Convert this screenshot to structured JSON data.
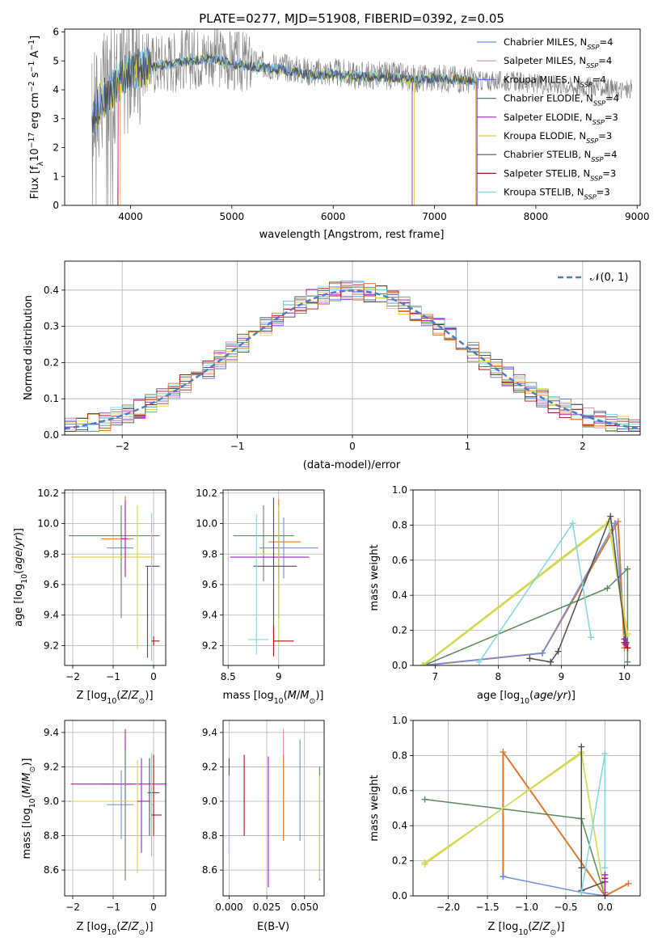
{
  "title": "PLATE=0277, MJD=51908, FIBERID=0392, z=0.05",
  "colors": {
    "Chabrier MILES": "#6b8ee0",
    "Salpeter MILES": "#e88aa8",
    "Kroupa MILES": "#6b6fd8",
    "Chabrier ELODIE": "#5c8a5c",
    "Salpeter ELODIE": "#a020c0",
    "Kroupa ELODIE": "#e0d040",
    "Chabrier STELIB": "#505050",
    "Salpeter STELIB": "#b01010",
    "Kroupa STELIB": "#7fd8e0",
    "data": "#808080",
    "orange": "#e07830",
    "lime": "#c8e060"
  },
  "chart_data": [
    {
      "id": "spectrum",
      "type": "line",
      "title": "PLATE=0277, MJD=51908, FIBERID=0392, z=0.05",
      "xlabel": "wavelength [Angstrom, rest frame]",
      "ylabel": "Flux [f_λ10^-17 erg cm^-2 s^-1 A^-1]",
      "xlim": [
        3350,
        9030
      ],
      "ylim": [
        0,
        6.1
      ],
      "xticks": [
        4000,
        5000,
        6000,
        7000,
        8000,
        9000
      ],
      "yticks": [
        0,
        1,
        2,
        3,
        4,
        5,
        6
      ],
      "legend_position": "right",
      "legend": [
        "Chabrier MILES, N_SSP=4",
        "Salpeter MILES, N_SSP=4",
        "Kroupa MILES, N_SSP=4",
        "Chabrier ELODIE, N_SSP=4",
        "Salpeter ELODIE, N_SSP=3",
        "Kroupa ELODIE, N_SSP=3",
        "Chabrier STELIB, N_SSP=4",
        "Salpeter STELIB, N_SSP=3",
        "Kroupa STELIB, N_SSP=3"
      ],
      "data_envelope": {
        "x": [
          3620,
          3700,
          3800,
          3900,
          4000,
          4200,
          4400,
          4600,
          4800,
          5000,
          5200,
          5500,
          5800,
          6000,
          6200,
          6500,
          6800,
          7000,
          7200,
          7400,
          7600,
          7800,
          8000,
          8200,
          8400,
          8600,
          8800,
          8950
        ],
        "y": [
          3.2,
          3.8,
          4.0,
          4.4,
          4.8,
          4.9,
          5.0,
          5.1,
          5.2,
          5.0,
          4.9,
          4.8,
          4.6,
          4.6,
          4.5,
          4.5,
          4.4,
          4.4,
          4.4,
          4.3,
          4.3,
          4.3,
          4.2,
          4.2,
          4.1,
          4.1,
          4.0,
          4.0
        ]
      },
      "model_fit": {
        "x": [
          3620,
          3700,
          3800,
          3900,
          4000,
          4200,
          4400,
          4600,
          4800,
          5000,
          5200,
          5500,
          5800,
          6000,
          6200,
          6500,
          6800,
          7000,
          7200,
          7400
        ],
        "y": [
          3.0,
          3.6,
          3.9,
          4.4,
          4.7,
          4.8,
          4.9,
          5.0,
          5.1,
          4.9,
          4.8,
          4.7,
          4.5,
          4.55,
          4.45,
          4.45,
          4.35,
          4.4,
          4.35,
          4.3
        ]
      }
    },
    {
      "id": "residuals",
      "type": "histogram",
      "xlabel": "(data-model)/error",
      "ylabel": "Normed distribution",
      "xlim": [
        -2.5,
        2.5
      ],
      "ylim": [
        0,
        0.48
      ],
      "xticks": [
        -2,
        -1,
        0,
        1,
        2
      ],
      "yticks": [
        0.0,
        0.1,
        0.2,
        0.3,
        0.4
      ],
      "grid": true,
      "legend_position": "top-right",
      "reference_curve": "𝒩(0, 1)",
      "bin_width": 0.1
    },
    {
      "id": "age_vs_Z",
      "type": "errorbar",
      "xlabel": "Z [log10(Z/Z⊙)]",
      "ylabel": "age  [log10(age/yr)]",
      "xlim": [
        -2.2,
        0.3
      ],
      "ylim": [
        9.07,
        10.22
      ],
      "xticks": [
        -2,
        -1,
        0
      ],
      "yticks": [
        9.2,
        9.4,
        9.6,
        9.8,
        10.0,
        10.2
      ],
      "grid": true,
      "points": [
        {
          "x": -0.7,
          "y": 9.9,
          "xerr": [
            0.6,
            0.2
          ],
          "yerr": [
            0.2,
            0.28
          ],
          "color": "#e07830"
        },
        {
          "x": -0.8,
          "y": 9.84,
          "xerr": [
            0.35,
            0.3
          ],
          "yerr": [
            0.2,
            0.2
          ],
          "color": "#6b8ee0"
        },
        {
          "x": -0.8,
          "y": 9.92,
          "xerr": [
            1.3,
            0.95
          ],
          "yerr": [
            0.54,
            0.2
          ],
          "color": "#5c8a5c"
        },
        {
          "x": -0.4,
          "y": 9.78,
          "xerr": [
            1.65,
            0.4
          ],
          "yerr": [
            0.22,
            0.34
          ],
          "color": "#e0d040"
        },
        {
          "x": -0.4,
          "y": 9.8,
          "xerr": [
            0.25,
            0.15
          ],
          "yerr": [
            0.62,
            0.32
          ],
          "color": "#c8e060"
        },
        {
          "x": -0.15,
          "y": 9.72,
          "xerr": [
            0.05,
            0.3
          ],
          "yerr": [
            0.6,
            0.0
          ],
          "color": "#505050"
        },
        {
          "x": -0.05,
          "y": 9.8,
          "xerr": [
            0.0,
            0.0
          ],
          "yerr": [
            0.7,
            0.27
          ],
          "color": "#7fd8e0"
        },
        {
          "x": 0.0,
          "y": 9.23,
          "xerr": [
            0.05,
            0.15
          ],
          "yerr": [
            0.03,
            0.03
          ],
          "color": "#b01010"
        },
        {
          "x": -0.7,
          "y": 9.9,
          "xerr": [
            0.1,
            0.05
          ],
          "yerr": [
            0.25,
            0.25
          ],
          "color": "#a020c0"
        }
      ]
    },
    {
      "id": "age_vs_mass",
      "type": "errorbar",
      "xlabel": "mass [log10(M/M⊙)]",
      "ylabel": "",
      "xlim": [
        8.45,
        9.45
      ],
      "ylim": [
        9.07,
        10.22
      ],
      "xticks": [
        8.5,
        9.0
      ],
      "yticks": [
        9.2,
        9.4,
        9.6,
        9.8,
        10.0,
        10.2
      ],
      "grid": true,
      "points": [
        {
          "x": 9.0,
          "y": 9.88,
          "xerr": [
            0.1,
            0.22
          ],
          "yerr": [
            0.2,
            0.28
          ],
          "color": "#e07830"
        },
        {
          "x": 9.05,
          "y": 9.84,
          "xerr": [
            0.24,
            0.34
          ],
          "yerr": [
            0.2,
            0.2
          ],
          "color": "#6b8ee0"
        },
        {
          "x": 8.85,
          "y": 9.92,
          "xerr": [
            0.3,
            0.3
          ],
          "yerr": [
            0.3,
            0.2
          ],
          "color": "#5c8a5c"
        },
        {
          "x": 9.0,
          "y": 9.78,
          "xerr": [
            0.48,
            0.3
          ],
          "yerr": [
            0.4,
            0.3
          ],
          "color": "#a020c0"
        },
        {
          "x": 9.0,
          "y": 9.8,
          "xerr": [
            0.25,
            0.0
          ],
          "yerr": [
            0.6,
            0.32
          ],
          "color": "#c8e060"
        },
        {
          "x": 8.95,
          "y": 9.72,
          "xerr": [
            0.2,
            0.23
          ],
          "yerr": [
            0.5,
            0.45
          ],
          "color": "#505050"
        },
        {
          "x": 8.78,
          "y": 9.84,
          "xerr": [
            0.0,
            0.0
          ],
          "yerr": [
            0.7,
            0.22
          ],
          "color": "#7fd8e0"
        },
        {
          "x": 8.95,
          "y": 9.23,
          "xerr": [
            0.0,
            0.2
          ],
          "yerr": [
            0.1,
            0.1
          ],
          "color": "#b01010"
        },
        {
          "x": 8.9,
          "y": 9.24,
          "xerr": [
            0.2,
            0.0
          ],
          "yerr": [
            0.0,
            0.0
          ],
          "color": "#7fd8e0"
        }
      ]
    },
    {
      "id": "weight_vs_age",
      "type": "line",
      "xlabel": "age  [log10(age/yr)]",
      "ylabel": "mass weight",
      "xlim": [
        6.65,
        10.25
      ],
      "ylim": [
        0,
        1.0
      ],
      "xticks": [
        7,
        8,
        9,
        10
      ],
      "yticks": [
        0.0,
        0.2,
        0.4,
        0.6,
        0.8,
        1.0
      ],
      "grid": true,
      "series": [
        {
          "color": "#e07830",
          "width": 2,
          "x": [
            6.82,
            8.7,
            9.9,
            10.0
          ],
          "y": [
            0.0,
            0.07,
            0.82,
            0.1
          ]
        },
        {
          "color": "#6b8ee0",
          "width": 1.5,
          "x": [
            6.82,
            8.7,
            9.85,
            10.02
          ],
          "y": [
            0.0,
            0.07,
            0.81,
            0.13
          ]
        },
        {
          "color": "#5c8a5c",
          "width": 1.5,
          "x": [
            6.82,
            9.73,
            10.05,
            10.05
          ],
          "y": [
            0.0,
            0.44,
            0.55,
            0.02
          ]
        },
        {
          "color": "#e0d040",
          "width": 1.5,
          "x": [
            6.8,
            9.75,
            10.05
          ],
          "y": [
            0.0,
            0.82,
            0.18
          ]
        },
        {
          "color": "#c8e060",
          "width": 1.5,
          "x": [
            6.82,
            9.75,
            10.03
          ],
          "y": [
            0.0,
            0.81,
            0.17
          ]
        },
        {
          "color": "#505050",
          "width": 1.5,
          "x": [
            8.5,
            8.83,
            8.95,
            9.78,
            10.03
          ],
          "y": [
            0.04,
            0.02,
            0.08,
            0.85,
            0.13
          ]
        },
        {
          "color": "#7fd8e0",
          "width": 1.5,
          "x": [
            7.7,
            9.18,
            9.47
          ],
          "y": [
            0.02,
            0.81,
            0.16
          ]
        },
        {
          "color": "#b01010",
          "width": 1,
          "x": [
            10.0,
            10.05
          ],
          "y": [
            0.13,
            0.1
          ]
        },
        {
          "color": "#a020c0",
          "width": 1,
          "x": [
            10.0,
            10.02
          ],
          "y": [
            0.15,
            0.12
          ]
        }
      ]
    },
    {
      "id": "mass_vs_Z",
      "type": "errorbar",
      "xlabel": "Z [log10(Z/Z⊙)]",
      "ylabel": "mass [log10(M/M⊙)]",
      "xlim": [
        -2.2,
        0.3
      ],
      "ylim": [
        8.45,
        9.47
      ],
      "xticks": [
        -2,
        -1,
        0
      ],
      "yticks": [
        8.6,
        8.8,
        9.0,
        9.2,
        9.4
      ],
      "grid": true,
      "points": [
        {
          "x": -0.7,
          "y": 9.1,
          "xerr": [
            0.6,
            0.2
          ],
          "yerr": [
            0.3,
            0.3
          ],
          "color": "#e88aa8"
        },
        {
          "x": -0.7,
          "y": 9.1,
          "xerr": [
            1.35,
            1.45
          ],
          "yerr": [
            0.1,
            0.32
          ],
          "color": "#a020c0"
        },
        {
          "x": -0.8,
          "y": 8.98,
          "xerr": [
            0.35,
            0.3
          ],
          "yerr": [
            0.2,
            0.2
          ],
          "color": "#6b8ee0"
        },
        {
          "x": -0.7,
          "y": 9.0,
          "xerr": [
            1.4,
            0.3
          ],
          "yerr": [
            0.46,
            0.3
          ],
          "color": "#5c8a5c"
        },
        {
          "x": -0.4,
          "y": 9.0,
          "xerr": [
            1.65,
            0.35
          ],
          "yerr": [
            0.42,
            0.24
          ],
          "color": "#e0d040"
        },
        {
          "x": -0.3,
          "y": 9.0,
          "xerr": [
            0.1,
            0.2
          ],
          "yerr": [
            0.3,
            0.25
          ],
          "color": "#a020c0"
        },
        {
          "x": -0.1,
          "y": 9.05,
          "xerr": [
            0.05,
            0.25
          ],
          "yerr": [
            0.25,
            0.2
          ],
          "color": "#505050"
        },
        {
          "x": -0.05,
          "y": 8.98,
          "xerr": [
            0.0,
            0.05
          ],
          "yerr": [
            0.3,
            0.3
          ],
          "color": "#7fd8e0"
        },
        {
          "x": 0.0,
          "y": 8.92,
          "xerr": [
            0.05,
            0.2
          ],
          "yerr": [
            0.12,
            0.35
          ],
          "color": "#b01010"
        }
      ]
    },
    {
      "id": "mass_vs_EBV",
      "type": "errorbar",
      "xlabel": "E(B-V)",
      "ylabel": "",
      "xlim": [
        -0.004,
        0.063
      ],
      "ylim": [
        8.45,
        9.47
      ],
      "xticks": [
        0.0,
        0.025,
        0.05
      ],
      "xtick_labels": [
        "0.000",
        "0.025",
        "0.050"
      ],
      "yticks": [
        8.6,
        8.8,
        9.0,
        9.2,
        9.4
      ],
      "grid": true,
      "points": [
        {
          "x": 0.0,
          "y": 9.0,
          "yerr": [
            0.3,
            0.25
          ],
          "color": "#505050"
        },
        {
          "x": 0.0,
          "y": 9.0,
          "yerr": [
            0.3,
            0.15
          ],
          "color": "#7fd8e0"
        },
        {
          "x": 0.01,
          "y": 9.04,
          "yerr": [
            0.24,
            0.23
          ],
          "color": "#b01010"
        },
        {
          "x": 0.026,
          "y": 8.88,
          "yerr": [
            0.38,
            0.38
          ],
          "color": "#a020c0"
        },
        {
          "x": 0.036,
          "y": 9.1,
          "yerr": [
            0.33,
            0.32
          ],
          "color": "#e88aa8"
        },
        {
          "x": 0.036,
          "y": 9.05,
          "yerr": [
            0.28,
            0.22
          ],
          "color": "#e07830"
        },
        {
          "x": 0.047,
          "y": 9.07,
          "yerr": [
            0.3,
            0.29
          ],
          "color": "#6b8ee0"
        },
        {
          "x": 0.06,
          "y": 8.88,
          "yerr": [
            0.34,
            0.32
          ],
          "color": "#5c8a5c"
        },
        {
          "x": 0.06,
          "y": 8.85,
          "yerr": [
            0.3,
            0.3
          ],
          "color": "#e0d040"
        }
      ]
    },
    {
      "id": "weight_vs_Z",
      "type": "line",
      "xlabel": "Z [log10(Z/Z⊙)]",
      "ylabel": "mass weight",
      "xlim": [
        -2.45,
        0.45
      ],
      "ylim": [
        0,
        1.0
      ],
      "xticks": [
        -2.0,
        -1.5,
        -1.0,
        -0.5,
        0.0
      ],
      "xtick_labels": [
        "−2.0",
        "−1.5",
        "−1.0",
        "−0.5",
        "0.0"
      ],
      "yticks": [
        0.0,
        0.2,
        0.4,
        0.6,
        0.8,
        1.0
      ],
      "grid": true,
      "series": [
        {
          "color": "#e07830",
          "width": 2,
          "x": [
            -1.3,
            -1.3,
            0.0,
            0.3
          ],
          "y": [
            0.11,
            0.82,
            0.0,
            0.07
          ]
        },
        {
          "color": "#6b8ee0",
          "width": 1.5,
          "x": [
            -1.3,
            -0.3,
            0.0
          ],
          "y": [
            0.11,
            0.02,
            0.0
          ]
        },
        {
          "color": "#5c8a5c",
          "width": 1.5,
          "x": [
            -2.3,
            -0.3,
            0.0,
            0.0
          ],
          "y": [
            0.55,
            0.44,
            0.0,
            0.02
          ]
        },
        {
          "color": "#e0d040",
          "width": 1.5,
          "x": [
            -2.3,
            -0.3,
            0.0
          ],
          "y": [
            0.18,
            0.82,
            0.0
          ]
        },
        {
          "color": "#c8e060",
          "width": 1.5,
          "x": [
            -2.3,
            -0.3,
            0.0
          ],
          "y": [
            0.19,
            0.81,
            0.0
          ]
        },
        {
          "color": "#505050",
          "width": 1.5,
          "x": [
            -0.3,
            -0.3,
            -0.3,
            0.0
          ],
          "y": [
            0.85,
            0.16,
            0.03,
            0.08
          ]
        },
        {
          "color": "#7fd8e0",
          "width": 1.5,
          "x": [
            -0.3,
            0.0,
            0.0
          ],
          "y": [
            0.02,
            0.81,
            0.16
          ]
        },
        {
          "color": "#b01010",
          "width": 1,
          "x": [
            0.0,
            0.0
          ],
          "y": [
            0.0,
            0.1
          ]
        },
        {
          "color": "#a020c0",
          "width": 1,
          "x": [
            0.0,
            0.0
          ],
          "y": [
            0.0,
            0.12
          ]
        }
      ]
    }
  ]
}
